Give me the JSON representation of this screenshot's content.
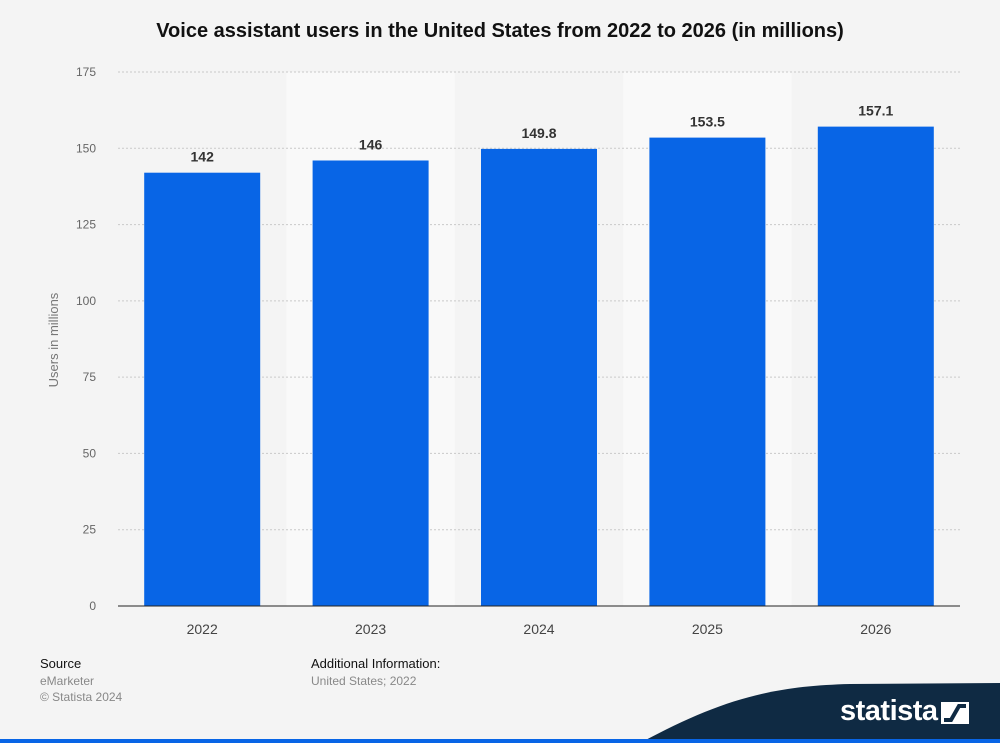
{
  "title": "Voice assistant users in the United States from 2022 to 2026 (in millions)",
  "chart_data": {
    "type": "bar",
    "title": "Voice assistant users in the United States from 2022 to 2026 (in millions)",
    "categories": [
      "2022",
      "2023",
      "2024",
      "2025",
      "2026"
    ],
    "values": [
      142,
      146,
      149.8,
      153.5,
      157.1
    ],
    "value_labels": [
      "142",
      "146",
      "149.8",
      "153.5",
      "157.1"
    ],
    "xlabel": "",
    "ylabel": "Users in millions",
    "ylim": [
      0,
      175
    ],
    "yticks": [
      0,
      25,
      50,
      75,
      100,
      125,
      150,
      175
    ],
    "grid": true,
    "legend": "none",
    "bar_color": "#0865e6"
  },
  "footer": {
    "source_heading": "Source",
    "source_name": "eMarketer",
    "copyright": "© Statista 2024",
    "additional_heading": "Additional Information:",
    "additional_text": "United States; 2022"
  },
  "brand": {
    "name": "statista",
    "icon": "statista-logo-icon",
    "ribbon_color": "#0f2a43",
    "accent_color": "#0865e6"
  }
}
